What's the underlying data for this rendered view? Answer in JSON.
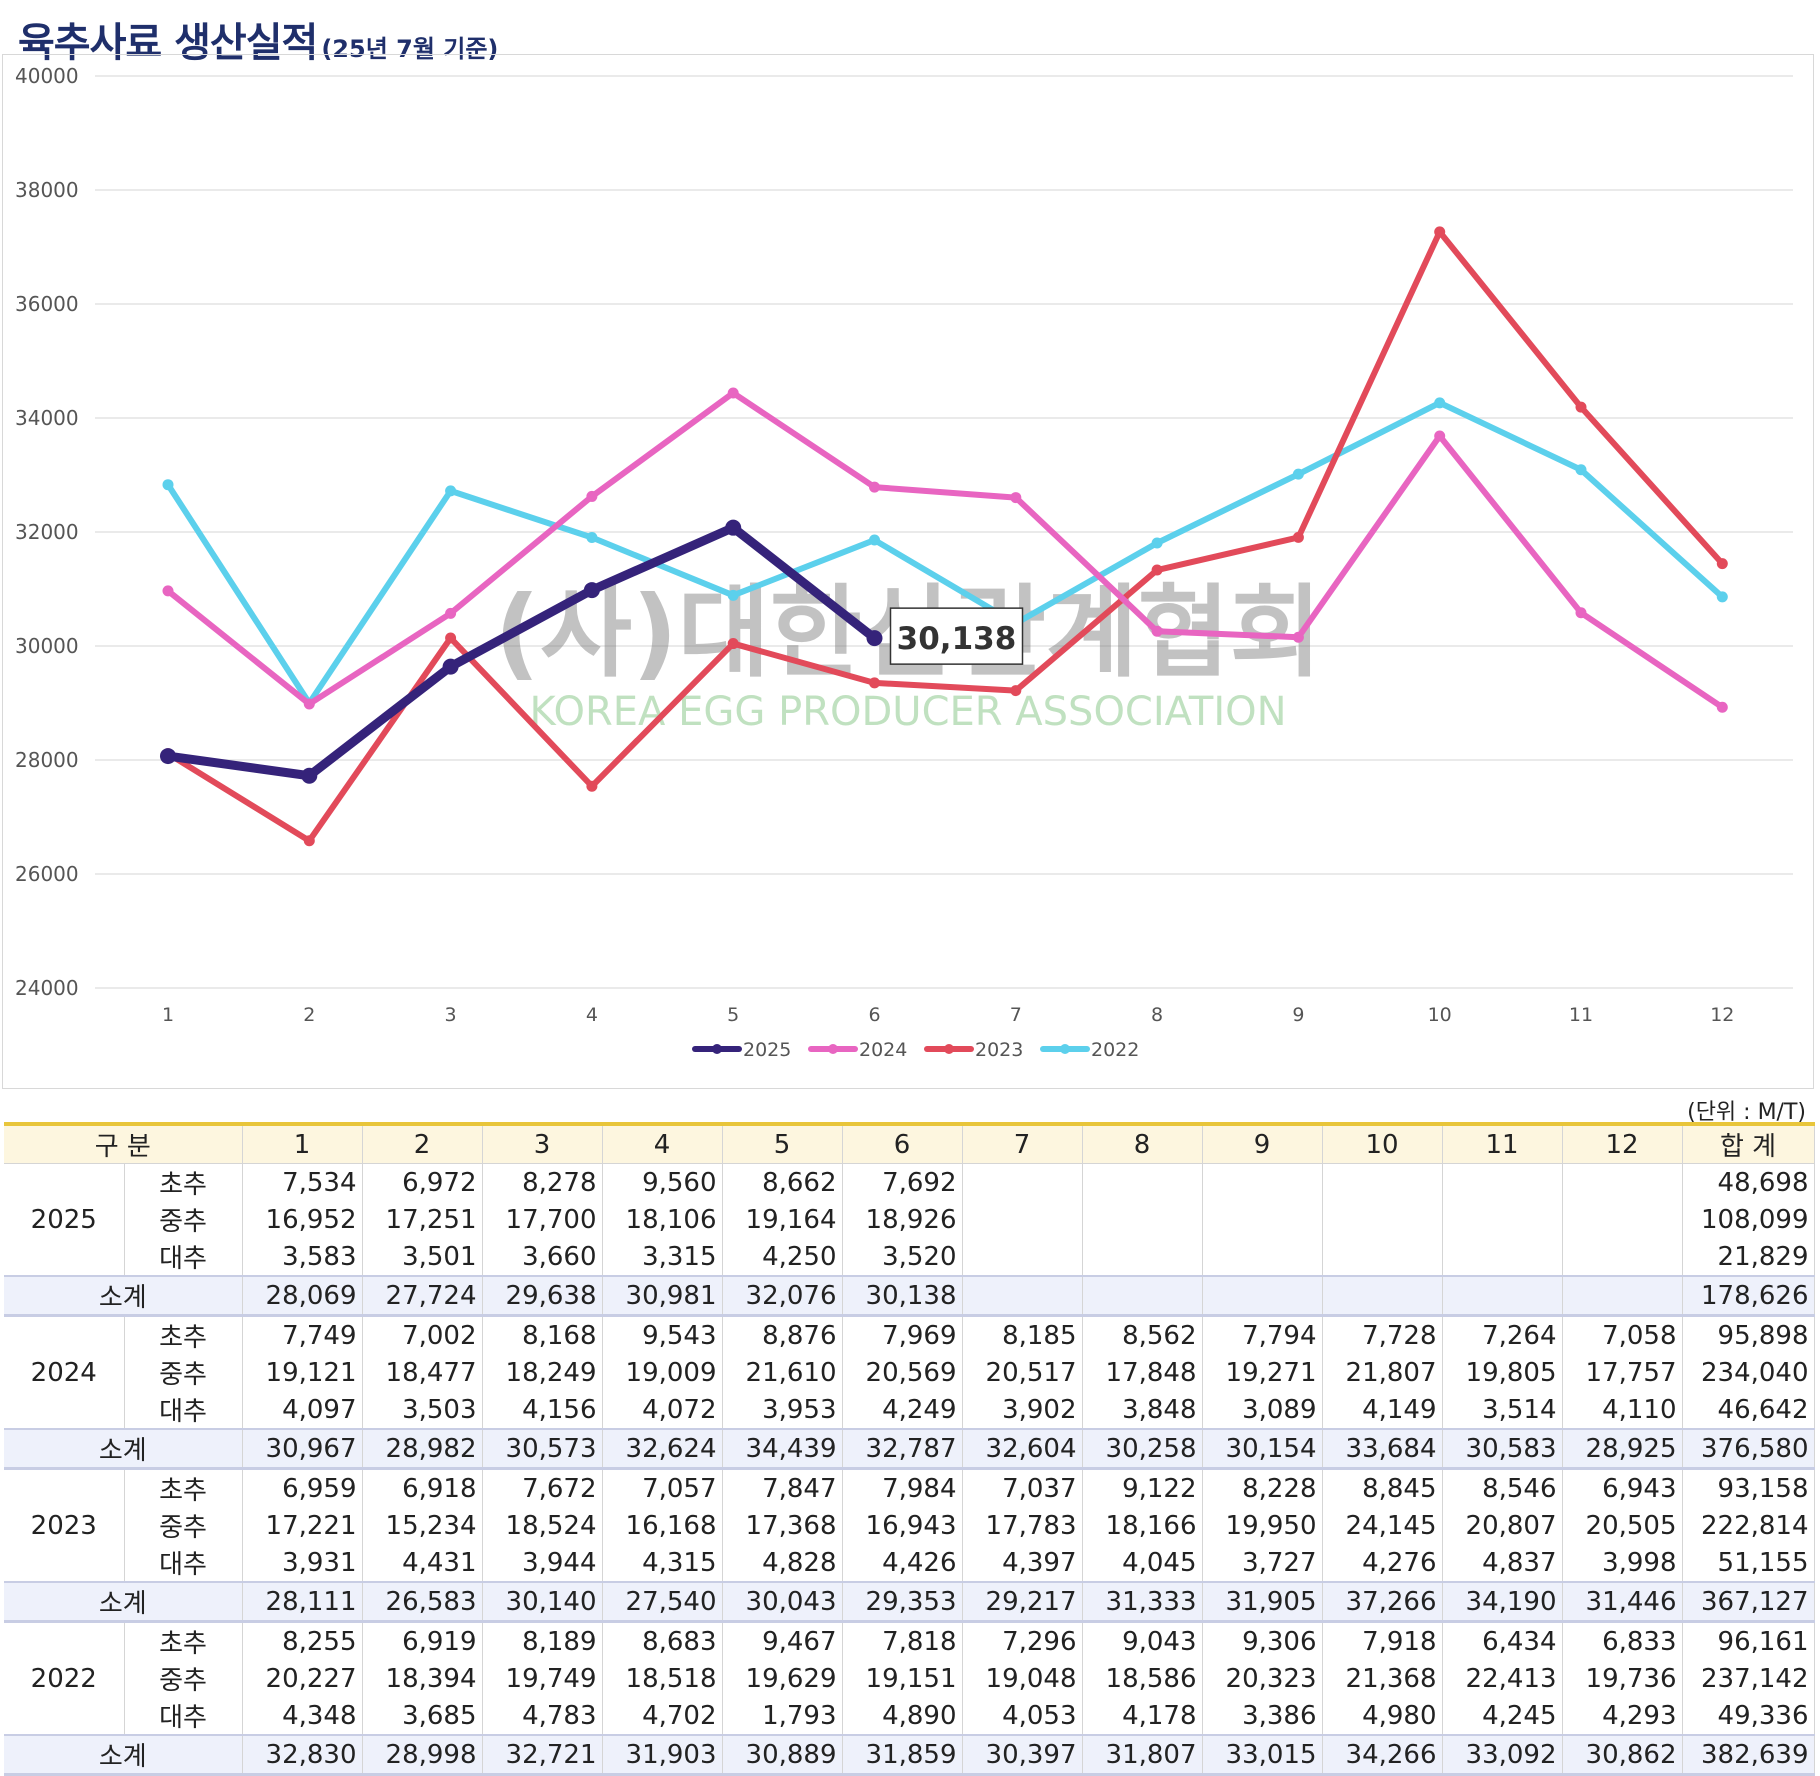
{
  "title": {
    "main": "육추사료 생산실적",
    "sub": "(25년 7월 기준)"
  },
  "chart_data": {
    "type": "line",
    "categories": [
      "1",
      "2",
      "3",
      "4",
      "5",
      "6",
      "7",
      "8",
      "9",
      "10",
      "11",
      "12"
    ],
    "ylim": [
      24000,
      40000
    ],
    "yticks": [
      "24000",
      "26000",
      "28000",
      "30000",
      "32000",
      "34000",
      "36000",
      "38000",
      "40000"
    ],
    "grid": true,
    "legend_position": "bottom",
    "series": [
      {
        "name": "2025",
        "color": "#35237a",
        "values": [
          28069,
          27724,
          29638,
          30981,
          32076,
          30138,
          null,
          null,
          null,
          null,
          null,
          null
        ]
      },
      {
        "name": "2024",
        "color": "#e865c1",
        "values": [
          30967,
          28982,
          30573,
          32624,
          34439,
          32787,
          32604,
          30258,
          30154,
          33684,
          30583,
          28925
        ]
      },
      {
        "name": "2023",
        "color": "#e24a5a",
        "values": [
          28111,
          26583,
          30140,
          27540,
          30043,
          29353,
          29217,
          31333,
          31905,
          37266,
          34190,
          31446
        ]
      },
      {
        "name": "2022",
        "color": "#5cd0ec",
        "values": [
          32830,
          28998,
          32721,
          31903,
          30889,
          31859,
          30397,
          31807,
          33015,
          34266,
          33092,
          30862
        ]
      }
    ],
    "annotation": {
      "series": "2025",
      "index": 5,
      "text": "30,138"
    }
  },
  "watermark": {
    "ko": "(사)대한산란계협회",
    "en": "KOREA EGG PRODUCER ASSOCIATION"
  },
  "unit_label": "(단위 : M/T)",
  "table": {
    "header_label": "구 분",
    "months": [
      "1",
      "2",
      "3",
      "4",
      "5",
      "6",
      "7",
      "8",
      "9",
      "10",
      "11",
      "12"
    ],
    "total_label": "합 계",
    "subtotal_label": "소계",
    "years": [
      {
        "year": "2025",
        "rows": [
          {
            "label": "초추",
            "values": [
              "7,534",
              "6,972",
              "8,278",
              "9,560",
              "8,662",
              "7,692",
              "",
              "",
              "",
              "",
              "",
              ""
            ],
            "total": "48,698"
          },
          {
            "label": "중추",
            "values": [
              "16,952",
              "17,251",
              "17,700",
              "18,106",
              "19,164",
              "18,926",
              "",
              "",
              "",
              "",
              "",
              ""
            ],
            "total": "108,099"
          },
          {
            "label": "대추",
            "values": [
              "3,583",
              "3,501",
              "3,660",
              "3,315",
              "4,250",
              "3,520",
              "",
              "",
              "",
              "",
              "",
              ""
            ],
            "total": "21,829"
          }
        ],
        "subtotal": {
          "values": [
            "28,069",
            "27,724",
            "29,638",
            "30,981",
            "32,076",
            "30,138",
            "",
            "",
            "",
            "",
            "",
            ""
          ],
          "total": "178,626"
        }
      },
      {
        "year": "2024",
        "rows": [
          {
            "label": "초추",
            "values": [
              "7,749",
              "7,002",
              "8,168",
              "9,543",
              "8,876",
              "7,969",
              "8,185",
              "8,562",
              "7,794",
              "7,728",
              "7,264",
              "7,058"
            ],
            "total": "95,898"
          },
          {
            "label": "중추",
            "values": [
              "19,121",
              "18,477",
              "18,249",
              "19,009",
              "21,610",
              "20,569",
              "20,517",
              "17,848",
              "19,271",
              "21,807",
              "19,805",
              "17,757"
            ],
            "total": "234,040"
          },
          {
            "label": "대추",
            "values": [
              "4,097",
              "3,503",
              "4,156",
              "4,072",
              "3,953",
              "4,249",
              "3,902",
              "3,848",
              "3,089",
              "4,149",
              "3,514",
              "4,110"
            ],
            "total": "46,642"
          }
        ],
        "subtotal": {
          "values": [
            "30,967",
            "28,982",
            "30,573",
            "32,624",
            "34,439",
            "32,787",
            "32,604",
            "30,258",
            "30,154",
            "33,684",
            "30,583",
            "28,925"
          ],
          "total": "376,580"
        }
      },
      {
        "year": "2023",
        "rows": [
          {
            "label": "초추",
            "values": [
              "6,959",
              "6,918",
              "7,672",
              "7,057",
              "7,847",
              "7,984",
              "7,037",
              "9,122",
              "8,228",
              "8,845",
              "8,546",
              "6,943"
            ],
            "total": "93,158"
          },
          {
            "label": "중추",
            "values": [
              "17,221",
              "15,234",
              "18,524",
              "16,168",
              "17,368",
              "16,943",
              "17,783",
              "18,166",
              "19,950",
              "24,145",
              "20,807",
              "20,505"
            ],
            "total": "222,814"
          },
          {
            "label": "대추",
            "values": [
              "3,931",
              "4,431",
              "3,944",
              "4,315",
              "4,828",
              "4,426",
              "4,397",
              "4,045",
              "3,727",
              "4,276",
              "4,837",
              "3,998"
            ],
            "total": "51,155"
          }
        ],
        "subtotal": {
          "values": [
            "28,111",
            "26,583",
            "30,140",
            "27,540",
            "30,043",
            "29,353",
            "29,217",
            "31,333",
            "31,905",
            "37,266",
            "34,190",
            "31,446"
          ],
          "total": "367,127"
        }
      },
      {
        "year": "2022",
        "rows": [
          {
            "label": "초추",
            "values": [
              "8,255",
              "6,919",
              "8,189",
              "8,683",
              "9,467",
              "7,818",
              "7,296",
              "9,043",
              "9,306",
              "7,918",
              "6,434",
              "6,833"
            ],
            "total": "96,161"
          },
          {
            "label": "중추",
            "values": [
              "20,227",
              "18,394",
              "19,749",
              "18,518",
              "19,629",
              "19,151",
              "19,048",
              "18,586",
              "20,323",
              "21,368",
              "22,413",
              "19,736"
            ],
            "total": "237,142"
          },
          {
            "label": "대추",
            "values": [
              "4,348",
              "3,685",
              "4,783",
              "4,702",
              "1,793",
              "4,890",
              "4,053",
              "4,178",
              "3,386",
              "4,980",
              "4,245",
              "4,293"
            ],
            "total": "49,336"
          }
        ],
        "subtotal": {
          "values": [
            "32,830",
            "28,998",
            "32,721",
            "31,903",
            "30,889",
            "31,859",
            "30,397",
            "31,807",
            "33,015",
            "34,266",
            "33,092",
            "30,862"
          ],
          "total": "382,639"
        }
      }
    ]
  }
}
